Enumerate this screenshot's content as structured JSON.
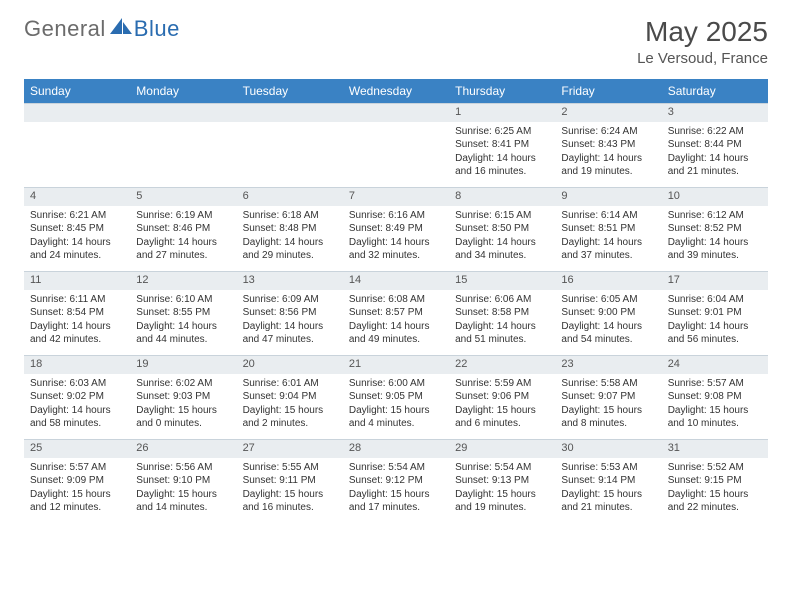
{
  "brand": {
    "part1": "General",
    "part2": "Blue"
  },
  "title": "May 2025",
  "location": "Le Versoud, France",
  "colors": {
    "header_bg": "#3a82c4",
    "daynum_bg": "#e9edf0",
    "border": "#c9d3db",
    "logo_gray": "#6b6b6b",
    "logo_blue": "#2a6cb0"
  },
  "weekdays": [
    "Sunday",
    "Monday",
    "Tuesday",
    "Wednesday",
    "Thursday",
    "Friday",
    "Saturday"
  ],
  "weeks": [
    {
      "nums": [
        "",
        "",
        "",
        "",
        "1",
        "2",
        "3"
      ],
      "cells": [
        null,
        null,
        null,
        null,
        {
          "sunrise": "Sunrise: 6:25 AM",
          "sunset": "Sunset: 8:41 PM",
          "day1": "Daylight: 14 hours",
          "day2": "and 16 minutes."
        },
        {
          "sunrise": "Sunrise: 6:24 AM",
          "sunset": "Sunset: 8:43 PM",
          "day1": "Daylight: 14 hours",
          "day2": "and 19 minutes."
        },
        {
          "sunrise": "Sunrise: 6:22 AM",
          "sunset": "Sunset: 8:44 PM",
          "day1": "Daylight: 14 hours",
          "day2": "and 21 minutes."
        }
      ]
    },
    {
      "nums": [
        "4",
        "5",
        "6",
        "7",
        "8",
        "9",
        "10"
      ],
      "cells": [
        {
          "sunrise": "Sunrise: 6:21 AM",
          "sunset": "Sunset: 8:45 PM",
          "day1": "Daylight: 14 hours",
          "day2": "and 24 minutes."
        },
        {
          "sunrise": "Sunrise: 6:19 AM",
          "sunset": "Sunset: 8:46 PM",
          "day1": "Daylight: 14 hours",
          "day2": "and 27 minutes."
        },
        {
          "sunrise": "Sunrise: 6:18 AM",
          "sunset": "Sunset: 8:48 PM",
          "day1": "Daylight: 14 hours",
          "day2": "and 29 minutes."
        },
        {
          "sunrise": "Sunrise: 6:16 AM",
          "sunset": "Sunset: 8:49 PM",
          "day1": "Daylight: 14 hours",
          "day2": "and 32 minutes."
        },
        {
          "sunrise": "Sunrise: 6:15 AM",
          "sunset": "Sunset: 8:50 PM",
          "day1": "Daylight: 14 hours",
          "day2": "and 34 minutes."
        },
        {
          "sunrise": "Sunrise: 6:14 AM",
          "sunset": "Sunset: 8:51 PM",
          "day1": "Daylight: 14 hours",
          "day2": "and 37 minutes."
        },
        {
          "sunrise": "Sunrise: 6:12 AM",
          "sunset": "Sunset: 8:52 PM",
          "day1": "Daylight: 14 hours",
          "day2": "and 39 minutes."
        }
      ]
    },
    {
      "nums": [
        "11",
        "12",
        "13",
        "14",
        "15",
        "16",
        "17"
      ],
      "cells": [
        {
          "sunrise": "Sunrise: 6:11 AM",
          "sunset": "Sunset: 8:54 PM",
          "day1": "Daylight: 14 hours",
          "day2": "and 42 minutes."
        },
        {
          "sunrise": "Sunrise: 6:10 AM",
          "sunset": "Sunset: 8:55 PM",
          "day1": "Daylight: 14 hours",
          "day2": "and 44 minutes."
        },
        {
          "sunrise": "Sunrise: 6:09 AM",
          "sunset": "Sunset: 8:56 PM",
          "day1": "Daylight: 14 hours",
          "day2": "and 47 minutes."
        },
        {
          "sunrise": "Sunrise: 6:08 AM",
          "sunset": "Sunset: 8:57 PM",
          "day1": "Daylight: 14 hours",
          "day2": "and 49 minutes."
        },
        {
          "sunrise": "Sunrise: 6:06 AM",
          "sunset": "Sunset: 8:58 PM",
          "day1": "Daylight: 14 hours",
          "day2": "and 51 minutes."
        },
        {
          "sunrise": "Sunrise: 6:05 AM",
          "sunset": "Sunset: 9:00 PM",
          "day1": "Daylight: 14 hours",
          "day2": "and 54 minutes."
        },
        {
          "sunrise": "Sunrise: 6:04 AM",
          "sunset": "Sunset: 9:01 PM",
          "day1": "Daylight: 14 hours",
          "day2": "and 56 minutes."
        }
      ]
    },
    {
      "nums": [
        "18",
        "19",
        "20",
        "21",
        "22",
        "23",
        "24"
      ],
      "cells": [
        {
          "sunrise": "Sunrise: 6:03 AM",
          "sunset": "Sunset: 9:02 PM",
          "day1": "Daylight: 14 hours",
          "day2": "and 58 minutes."
        },
        {
          "sunrise": "Sunrise: 6:02 AM",
          "sunset": "Sunset: 9:03 PM",
          "day1": "Daylight: 15 hours",
          "day2": "and 0 minutes."
        },
        {
          "sunrise": "Sunrise: 6:01 AM",
          "sunset": "Sunset: 9:04 PM",
          "day1": "Daylight: 15 hours",
          "day2": "and 2 minutes."
        },
        {
          "sunrise": "Sunrise: 6:00 AM",
          "sunset": "Sunset: 9:05 PM",
          "day1": "Daylight: 15 hours",
          "day2": "and 4 minutes."
        },
        {
          "sunrise": "Sunrise: 5:59 AM",
          "sunset": "Sunset: 9:06 PM",
          "day1": "Daylight: 15 hours",
          "day2": "and 6 minutes."
        },
        {
          "sunrise": "Sunrise: 5:58 AM",
          "sunset": "Sunset: 9:07 PM",
          "day1": "Daylight: 15 hours",
          "day2": "and 8 minutes."
        },
        {
          "sunrise": "Sunrise: 5:57 AM",
          "sunset": "Sunset: 9:08 PM",
          "day1": "Daylight: 15 hours",
          "day2": "and 10 minutes."
        }
      ]
    },
    {
      "nums": [
        "25",
        "26",
        "27",
        "28",
        "29",
        "30",
        "31"
      ],
      "cells": [
        {
          "sunrise": "Sunrise: 5:57 AM",
          "sunset": "Sunset: 9:09 PM",
          "day1": "Daylight: 15 hours",
          "day2": "and 12 minutes."
        },
        {
          "sunrise": "Sunrise: 5:56 AM",
          "sunset": "Sunset: 9:10 PM",
          "day1": "Daylight: 15 hours",
          "day2": "and 14 minutes."
        },
        {
          "sunrise": "Sunrise: 5:55 AM",
          "sunset": "Sunset: 9:11 PM",
          "day1": "Daylight: 15 hours",
          "day2": "and 16 minutes."
        },
        {
          "sunrise": "Sunrise: 5:54 AM",
          "sunset": "Sunset: 9:12 PM",
          "day1": "Daylight: 15 hours",
          "day2": "and 17 minutes."
        },
        {
          "sunrise": "Sunrise: 5:54 AM",
          "sunset": "Sunset: 9:13 PM",
          "day1": "Daylight: 15 hours",
          "day2": "and 19 minutes."
        },
        {
          "sunrise": "Sunrise: 5:53 AM",
          "sunset": "Sunset: 9:14 PM",
          "day1": "Daylight: 15 hours",
          "day2": "and 21 minutes."
        },
        {
          "sunrise": "Sunrise: 5:52 AM",
          "sunset": "Sunset: 9:15 PM",
          "day1": "Daylight: 15 hours",
          "day2": "and 22 minutes."
        }
      ]
    }
  ]
}
